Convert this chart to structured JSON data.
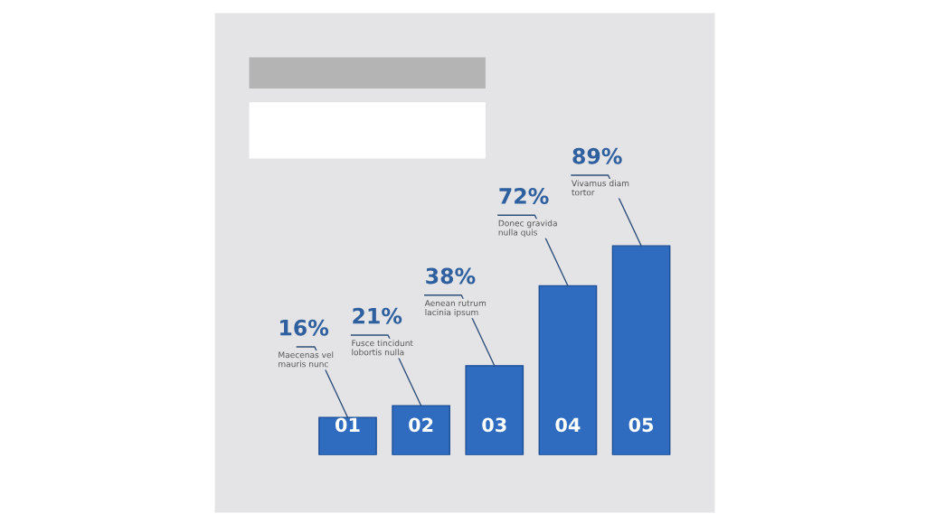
{
  "chart_data": {
    "type": "bar",
    "categories": [
      "01",
      "02",
      "03",
      "04",
      "05"
    ],
    "values": [
      16,
      21,
      38,
      72,
      89
    ],
    "value_labels": [
      "16%",
      "21%",
      "38%",
      "72%",
      "89%"
    ],
    "color": "#2f6bbf",
    "annotations": [
      {
        "text": "Maecenas vel\nmauris nunc",
        "x": "01",
        "y": 16
      },
      {
        "text": "Fusce tincidunt\nlobortis nulla",
        "x": "02",
        "y": 21
      },
      {
        "text": "Aenean rutrum\nlacinia ipsum",
        "x": "03",
        "y": 38
      },
      {
        "text": "Donec gravida\nnulla quis",
        "x": "04",
        "y": 72
      },
      {
        "text": "Vivamus diam\ntortor",
        "x": "05",
        "y": 89
      }
    ]
  }
}
